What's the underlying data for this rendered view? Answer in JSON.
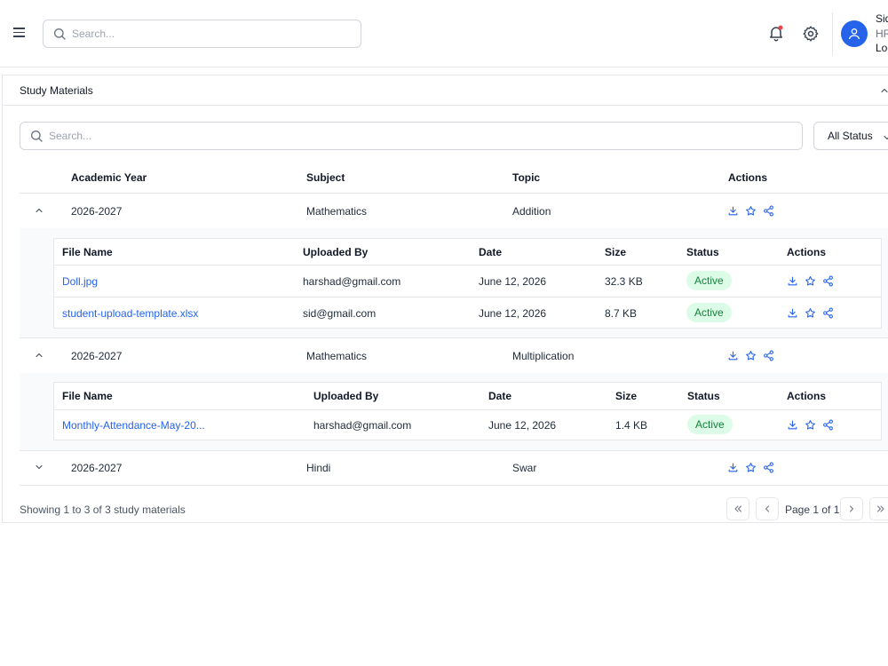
{
  "header": {
    "search_placeholder": "Search...",
    "user_name": "Sid",
    "user_role": "HR",
    "logout_label": "Log"
  },
  "card": {
    "title": "Study Materials",
    "search_placeholder": "Search...",
    "status_filter": "All Status",
    "columns": [
      "Academic Year",
      "Subject",
      "Topic",
      "Actions"
    ],
    "groups": [
      {
        "year": "2026-2027",
        "subject": "Mathematics",
        "topic": "Addition",
        "expanded": true,
        "file_columns": [
          "File Name",
          "Uploaded By",
          "Date",
          "Size",
          "Status",
          "Actions"
        ],
        "files": [
          {
            "name": "Doll.jpg",
            "uploaded_by": "harshad@gmail.com",
            "date": "June 12, 2026",
            "size": "32.3 KB",
            "status": "Active"
          },
          {
            "name": "student-upload-template.xlsx",
            "uploaded_by": "sid@gmail.com",
            "date": "June 12, 2026",
            "size": "8.7 KB",
            "status": "Active"
          }
        ]
      },
      {
        "year": "2026-2027",
        "subject": "Mathematics",
        "topic": "Multiplication",
        "expanded": true,
        "file_columns": [
          "File Name",
          "Uploaded By",
          "Date",
          "Size",
          "Status",
          "Actions"
        ],
        "files": [
          {
            "name": "Monthly-Attendance-May-20...",
            "uploaded_by": "harshad@gmail.com",
            "date": "June 12, 2026",
            "size": "1.4 KB",
            "status": "Active"
          }
        ]
      },
      {
        "year": "2026-2027",
        "subject": "Hindi",
        "topic": "Swar",
        "expanded": false
      }
    ],
    "footer": {
      "summary": "Showing 1 to 3 of 3 study materials",
      "page_label": "Page 1 of 1"
    }
  },
  "colors": {
    "accent": "#2563eb",
    "badge_bg": "#dcfce7",
    "badge_text": "#15803d",
    "notification_dot": "#ef4444"
  },
  "icons": [
    "menu-icon",
    "search-icon",
    "bell-icon",
    "gear-icon",
    "user-icon",
    "chevron-up-icon",
    "chevron-down-icon",
    "download-icon",
    "star-icon",
    "share-icon",
    "first-page-icon",
    "prev-page-icon",
    "next-page-icon",
    "last-page-icon"
  ]
}
